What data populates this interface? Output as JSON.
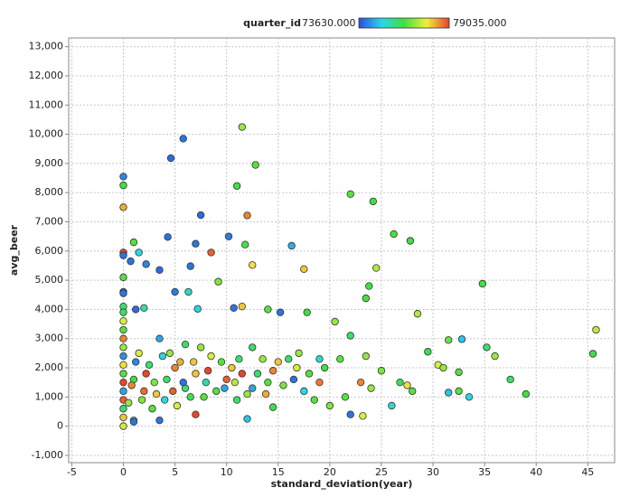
{
  "chart_data": {
    "type": "scatter",
    "x_label": "standard_deviation(year)",
    "y_label": "avg_beer",
    "color_label": "quarter_id",
    "color_ticks": [
      {
        "value": 73630,
        "label": "73630.000"
      },
      {
        "value": 79035,
        "label": "79035.000"
      }
    ],
    "colormap": [
      "#2b4fe0",
      "#29d6e8",
      "#3fe03f",
      "#f0f03a",
      "#e8402a"
    ],
    "xlim": [
      -5.3,
      47.6
    ],
    "ylim": [
      -1250,
      13300
    ],
    "xticks": [
      -5,
      0,
      5,
      10,
      15,
      20,
      25,
      30,
      35,
      40,
      45
    ],
    "yticks": [
      {
        "value": -1000,
        "label": "-1,000"
      },
      0,
      {
        "value": 1000,
        "label": "1,000"
      },
      {
        "value": 2000,
        "label": "2,000"
      },
      {
        "value": 3000,
        "label": "3,000"
      },
      {
        "value": 4000,
        "label": "4,000"
      },
      {
        "value": 5000,
        "label": "5,000"
      },
      {
        "value": 6000,
        "label": "6,000"
      },
      {
        "value": 7000,
        "label": "7,000"
      },
      {
        "value": 8000,
        "label": "8,000"
      },
      {
        "value": 9000,
        "label": "9,000"
      },
      {
        "value": 10000,
        "label": "10,000"
      },
      {
        "value": 11000,
        "label": "11,000"
      },
      {
        "value": 12000,
        "label": "12,000"
      },
      {
        "value": 13000,
        "label": "13,000"
      }
    ],
    "grid": true,
    "x": [
      0,
      0,
      0,
      0,
      0,
      0,
      0,
      0,
      0,
      4.6,
      5.8,
      11.5,
      12.8,
      11,
      7.5,
      12,
      4.3,
      7,
      10.2,
      11.8,
      1,
      1.5,
      0.7,
      2.2,
      3.5,
      8.5,
      6.5,
      12.5,
      16.3,
      17.5,
      22,
      24.2,
      26.2,
      27.8,
      24.5,
      23.8,
      23.5,
      34.8,
      9.2,
      10.7,
      11.5,
      5,
      6.3,
      7.2,
      1.2,
      2,
      15.2,
      14,
      17.8,
      20.5,
      22,
      23.5,
      29.5,
      31.5,
      32.8,
      35.2,
      36,
      28.5,
      30.5,
      31,
      32.5,
      37.5,
      39,
      33.5,
      31.5,
      32.5,
      45.5,
      45.8,
      26,
      26.8,
      27.5,
      28,
      25,
      24,
      23,
      22,
      23.2,
      21.5,
      20,
      19,
      19,
      18,
      17,
      16,
      15,
      14,
      13,
      12.5,
      12,
      11,
      10,
      9,
      8,
      7,
      7,
      6,
      5,
      4,
      3,
      2,
      1,
      1.5,
      2.5,
      3.5,
      4.5,
      5.5,
      6,
      7.5,
      8.5,
      9.5,
      10.5,
      11.5,
      12.5,
      13.5,
      14.5,
      16.5,
      17.5,
      18.5,
      12,
      14.5,
      3.5,
      1,
      1,
      0,
      0,
      0,
      0,
      0,
      0,
      0,
      0,
      0,
      0,
      0,
      0,
      0,
      0,
      0.5,
      0.8,
      1.2,
      1.8,
      2.2,
      2.8,
      3.2,
      3.8,
      4.2,
      4.8,
      5.2,
      5.8,
      6.5,
      6.8,
      7.8,
      8.2,
      9.8,
      10.8,
      11.2,
      13.8,
      15.5,
      16.8,
      19.5,
      21
    ],
    "y": [
      8550,
      8250,
      7500,
      5950,
      5850,
      5100,
      4600,
      4550,
      4100,
      9180,
      9850,
      10250,
      8950,
      8230,
      7230,
      7220,
      6480,
      6250,
      6500,
      6220,
      6300,
      5950,
      5650,
      5550,
      5350,
      5950,
      5480,
      5520,
      6180,
      5380,
      7950,
      7700,
      6580,
      6350,
      5420,
      4800,
      4380,
      4880,
      4950,
      4050,
      4100,
      4600,
      4600,
      4020,
      4000,
      4050,
      3900,
      4000,
      3900,
      3580,
      3100,
      2400,
      2550,
      2950,
      2980,
      2700,
      2400,
      3850,
      2100,
      2000,
      1850,
      1600,
      1100,
      1000,
      1150,
      1200,
      2480,
      3300,
      700,
      1500,
      1400,
      1200,
      1900,
      1300,
      1500,
      400,
      350,
      1000,
      700,
      1500,
      2300,
      1800,
      2500,
      2300,
      2200,
      1500,
      1800,
      1300,
      1100,
      900,
      1600,
      1200,
      1500,
      1800,
      400,
      1300,
      2000,
      900,
      1500,
      1200,
      1600,
      2500,
      2100,
      3000,
      2500,
      2200,
      2800,
      2700,
      2400,
      2200,
      2000,
      1800,
      2700,
      2300,
      1900,
      1600,
      1200,
      900,
      250,
      650,
      200,
      200,
      150,
      0,
      300,
      600,
      900,
      1200,
      1500,
      1800,
      2100,
      2400,
      2700,
      3000,
      3300,
      3600,
      3900,
      800,
      1400,
      2200,
      900,
      1800,
      600,
      1100,
      2400,
      1600,
      1200,
      700,
      1500,
      1000,
      2200,
      1000,
      1900,
      1300,
      1500,
      2300,
      1100,
      1400,
      2000,
      2000,
      2300
    ],
    "color_values": [
      74200,
      76300,
      78200,
      79000,
      74000,
      76500,
      73900,
      74000,
      76000,
      73900,
      74000,
      77000,
      76500,
      76300,
      73900,
      78500,
      74000,
      74000,
      74100,
      76400,
      76500,
      75000,
      74000,
      74200,
      73900,
      78800,
      74000,
      77800,
      74600,
      78000,
      76500,
      76300,
      76400,
      76300,
      77200,
      76300,
      76400,
      76300,
      76800,
      74000,
      78000,
      74100,
      75300,
      75000,
      73900,
      75500,
      74000,
      76500,
      76300,
      77000,
      76000,
      77000,
      76200,
      76600,
      74800,
      76000,
      77000,
      77200,
      77500,
      77000,
      76500,
      76000,
      76300,
      75000,
      74800,
      76500,
      76200,
      77300,
      75200,
      76200,
      77800,
      76500,
      76800,
      77000,
      78500,
      74000,
      77500,
      76500,
      76800,
      78600,
      75200,
      76500,
      77000,
      76000,
      78000,
      76500,
      76000,
      74500,
      77000,
      76000,
      78800,
      76500,
      75500,
      78000,
      79000,
      76000,
      78500,
      75000,
      76800,
      78700,
      76300,
      77500,
      76000,
      74500,
      77000,
      78200,
      76000,
      77000,
      77500,
      76500,
      78000,
      79000,
      76000,
      77000,
      78500,
      74000,
      75000,
      76500,
      74800,
      76200,
      74000,
      75500,
      74000,
      77400,
      78000,
      76000,
      78800,
      74500,
      79000,
      76500,
      77800,
      74300,
      77000,
      78500,
      76500,
      77500,
      76000,
      77000,
      78500,
      74200,
      76800,
      79000,
      76500,
      78000,
      75000,
      76000,
      78800,
      77500,
      74000,
      76200,
      78000,
      76500,
      79000,
      74500,
      77200,
      76000,
      78200,
      76800,
      77500,
      76300,
      76500
    ]
  }
}
